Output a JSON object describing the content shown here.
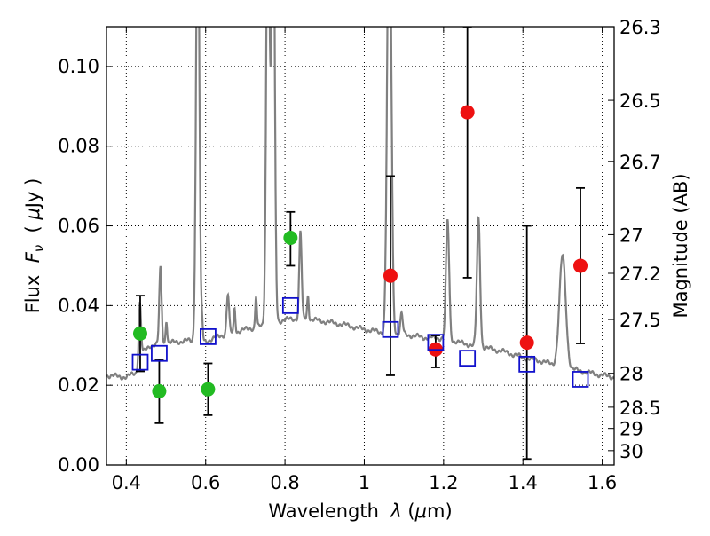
{
  "chart_data": {
    "type": "scatter",
    "xlabel_parts": [
      "Wavelength  ",
      "λ",
      " (",
      "μ",
      "m)"
    ],
    "ylabel_parts": [
      "Flux  ",
      "F",
      "ν",
      "  ( ",
      "μ",
      "Jy )"
    ],
    "y2label": "Magnitude (AB)",
    "xlim": [
      0.35,
      1.63
    ],
    "ylim": [
      0.0,
      0.11
    ],
    "grid": true,
    "x_ticks": [
      0.4,
      0.6,
      0.8,
      1.0,
      1.2,
      1.4,
      1.6
    ],
    "x_tick_labels": [
      "0.4",
      "0.6",
      "0.8",
      "1",
      "1.2",
      "1.4",
      "1.6"
    ],
    "y_ticks": [
      0.0,
      0.02,
      0.04,
      0.06,
      0.08,
      0.1
    ],
    "y_tick_labels": [
      "0.00",
      "0.02",
      "0.04",
      "0.06",
      "0.08",
      "0.10"
    ],
    "y2_ticks": [
      {
        "label": "26.3",
        "flux": 0.11
      },
      {
        "label": "26.5",
        "flux": 0.0915
      },
      {
        "label": "26.7",
        "flux": 0.0762
      },
      {
        "label": "27",
        "flux": 0.0578
      },
      {
        "label": "27.2",
        "flux": 0.0481
      },
      {
        "label": "27.5",
        "flux": 0.0365
      },
      {
        "label": "28",
        "flux": 0.023
      },
      {
        "label": "28.5",
        "flux": 0.0145
      },
      {
        "label": "29",
        "flux": 0.0092
      },
      {
        "label": "30",
        "flux": 0.0036
      }
    ],
    "series": [
      {
        "name": "green-photometry",
        "marker": "circle",
        "color": "#22bb22",
        "points": [
          {
            "x": 0.435,
            "y": 0.033,
            "ylo": 0.0235,
            "yhi": 0.0425
          },
          {
            "x": 0.483,
            "y": 0.0185,
            "ylo": 0.0105,
            "yhi": 0.0265
          },
          {
            "x": 0.606,
            "y": 0.019,
            "ylo": 0.0125,
            "yhi": 0.0255
          },
          {
            "x": 0.814,
            "y": 0.057,
            "ylo": 0.05,
            "yhi": 0.0635
          }
        ]
      },
      {
        "name": "red-photometry",
        "marker": "circle",
        "color": "#ee1111",
        "points": [
          {
            "x": 1.066,
            "y": 0.0475,
            "ylo": 0.0225,
            "yhi": 0.0725
          },
          {
            "x": 1.18,
            "y": 0.029,
            "ylo": 0.0245,
            "yhi": 0.0325
          },
          {
            "x": 1.26,
            "y": 0.0885,
            "ylo": 0.047,
            "yhi": 0.11
          },
          {
            "x": 1.41,
            "y": 0.0307,
            "ylo": 0.0015,
            "yhi": 0.06
          },
          {
            "x": 1.545,
            "y": 0.05,
            "ylo": 0.0305,
            "yhi": 0.0695
          }
        ]
      },
      {
        "name": "model-photometry",
        "marker": "square",
        "color": "#1111cc",
        "points": [
          {
            "x": 0.435,
            "y": 0.0258
          },
          {
            "x": 0.483,
            "y": 0.028
          },
          {
            "x": 0.606,
            "y": 0.0322
          },
          {
            "x": 0.814,
            "y": 0.04
          },
          {
            "x": 1.066,
            "y": 0.034
          },
          {
            "x": 1.18,
            "y": 0.0308
          },
          {
            "x": 1.26,
            "y": 0.0268
          },
          {
            "x": 1.41,
            "y": 0.0253
          },
          {
            "x": 1.545,
            "y": 0.0215
          }
        ]
      }
    ],
    "spectrum": {
      "name": "model-spectrum",
      "color": "#808080",
      "continuum": [
        [
          0.35,
          0.0225
        ],
        [
          0.4,
          0.022
        ],
        [
          0.43,
          0.0235
        ],
        [
          0.44,
          0.028
        ],
        [
          0.46,
          0.03
        ],
        [
          0.5,
          0.0305
        ],
        [
          0.55,
          0.0312
        ],
        [
          0.6,
          0.031
        ],
        [
          0.64,
          0.0325
        ],
        [
          0.7,
          0.034
        ],
        [
          0.75,
          0.035
        ],
        [
          0.8,
          0.0365
        ],
        [
          0.85,
          0.0368
        ],
        [
          0.9,
          0.036
        ],
        [
          0.95,
          0.0352
        ],
        [
          1.0,
          0.034
        ],
        [
          1.05,
          0.0332
        ],
        [
          1.1,
          0.0328
        ],
        [
          1.15,
          0.032
        ],
        [
          1.2,
          0.0318
        ],
        [
          1.25,
          0.0305
        ],
        [
          1.3,
          0.0295
        ],
        [
          1.35,
          0.0285
        ],
        [
          1.4,
          0.027
        ],
        [
          1.45,
          0.026
        ],
        [
          1.5,
          0.0245
        ],
        [
          1.55,
          0.0235
        ],
        [
          1.6,
          0.0225
        ],
        [
          1.63,
          0.022
        ]
      ],
      "lines": [
        {
          "x": 0.434,
          "peak": 0.015,
          "width": 0.003
        },
        {
          "x": 0.486,
          "peak": 0.019,
          "width": 0.003
        },
        {
          "x": 0.501,
          "peak": 0.006,
          "width": 0.002
        },
        {
          "x": 0.656,
          "peak": 0.01,
          "width": 0.003
        },
        {
          "x": 0.673,
          "peak": 0.006,
          "width": 0.002
        },
        {
          "x": 0.727,
          "peak": 0.008,
          "width": 0.002
        },
        {
          "x": 0.58,
          "peak": 0.12,
          "width": 0.004
        },
        {
          "x": 0.591,
          "peak": 0.004,
          "width": 0.002
        },
        {
          "x": 0.757,
          "peak": 0.12,
          "width": 0.004
        },
        {
          "x": 0.77,
          "peak": 0.12,
          "width": 0.004
        },
        {
          "x": 0.839,
          "peak": 0.022,
          "width": 0.003
        },
        {
          "x": 0.858,
          "peak": 0.006,
          "width": 0.002
        },
        {
          "x": 1.063,
          "peak": 0.12,
          "width": 0.005
        },
        {
          "x": 1.094,
          "peak": 0.005,
          "width": 0.003
        },
        {
          "x": 1.21,
          "peak": 0.03,
          "width": 0.004
        },
        {
          "x": 1.288,
          "peak": 0.032,
          "width": 0.004
        },
        {
          "x": 1.5,
          "peak": 0.028,
          "width": 0.008
        }
      ]
    }
  }
}
